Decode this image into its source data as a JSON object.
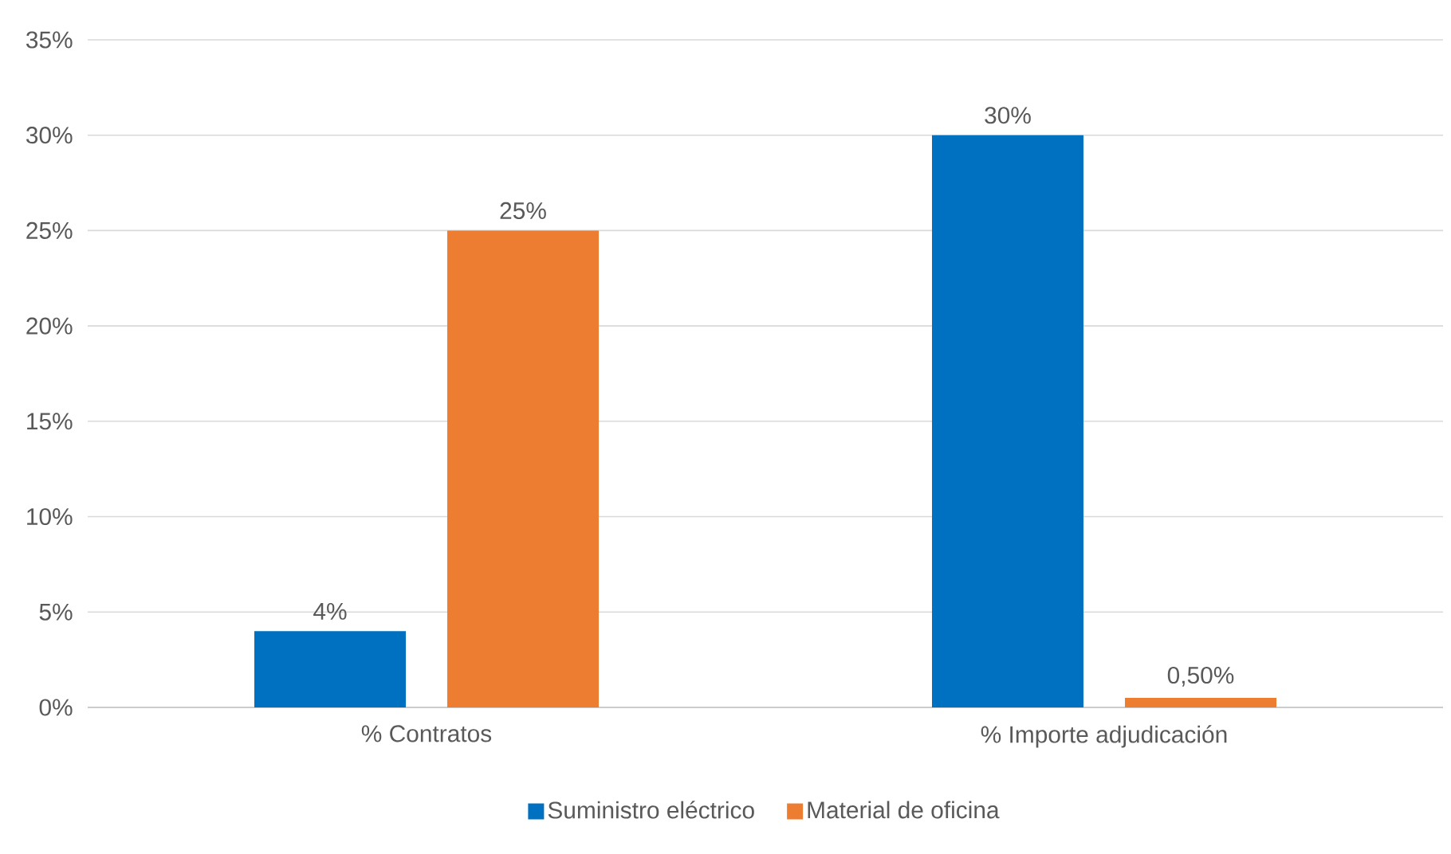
{
  "chart_data": {
    "type": "bar",
    "categories": [
      "% Contratos",
      "% Importe adjudicación"
    ],
    "series": [
      {
        "name": "Suministro eléctrico",
        "color": "#0070c0",
        "values": [
          4,
          30
        ],
        "value_labels": [
          "4%",
          "30%"
        ]
      },
      {
        "name": "Material de oficina",
        "color": "#ed7d31",
        "values": [
          25,
          0.5
        ],
        "value_labels": [
          "25%",
          "0,50%"
        ]
      }
    ],
    "ylim": [
      0,
      35
    ],
    "yticks": [
      {
        "value": 0,
        "label": "0%"
      },
      {
        "value": 5,
        "label": "5%"
      },
      {
        "value": 10,
        "label": "10%"
      },
      {
        "value": 15,
        "label": "15%"
      },
      {
        "value": 20,
        "label": "20%"
      },
      {
        "value": 25,
        "label": "25%"
      },
      {
        "value": 30,
        "label": "30%"
      },
      {
        "value": 35,
        "label": "35%"
      }
    ],
    "grid": "y",
    "legend": "bottom"
  }
}
